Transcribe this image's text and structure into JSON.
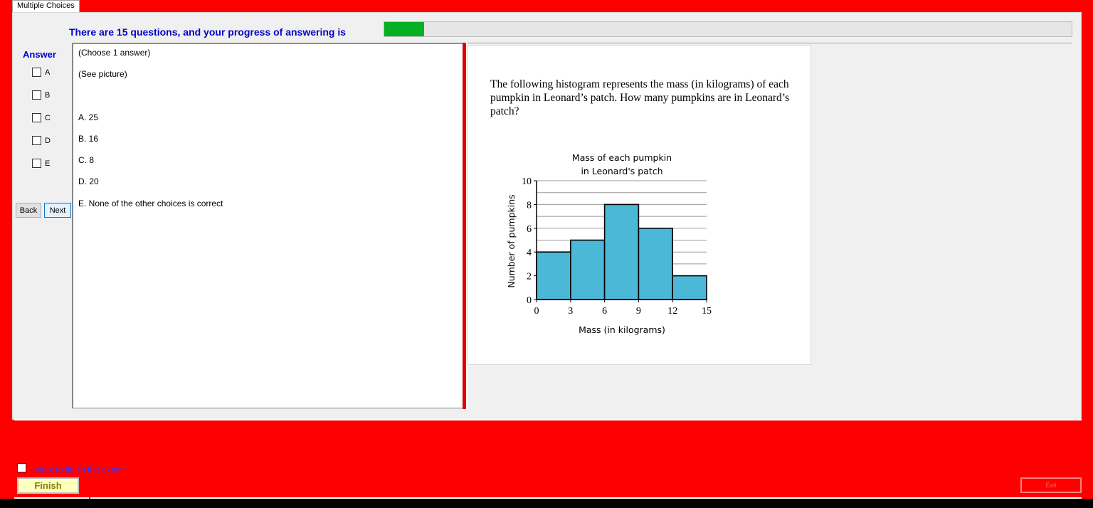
{
  "tab": {
    "label": "Multiple Choices"
  },
  "progress": {
    "label": "There are 15 questions, and your progress of answering is",
    "fraction": 0.058
  },
  "answer": {
    "heading": "Answer",
    "options": [
      "A",
      "B",
      "C",
      "D",
      "E"
    ]
  },
  "nav": {
    "back_label": "Back",
    "next_label": "Next"
  },
  "choices": {
    "instruction": "(Choose 1 answer)",
    "see_picture": "(See picture)",
    "items": [
      "A. 25",
      "B. 16",
      "C. 8",
      "D. 20",
      "E. None of the other choices is correct"
    ]
  },
  "question": {
    "text": "The following histogram represents the mass (in kilograms) of each pumpkin in Leonard’s patch. How many pumpkins are in Leonard’s patch?"
  },
  "chart_data": {
    "type": "bar",
    "title": "Mass of each pumpkin in Leonard's patch",
    "title_lines": [
      "Mass of each pumpkin",
      "in Leonard's patch"
    ],
    "xlabel": "Mass (in kilograms)",
    "ylabel": "Number of pumpkins",
    "bins": [
      [
        0,
        3
      ],
      [
        3,
        6
      ],
      [
        6,
        9
      ],
      [
        9,
        12
      ],
      [
        12,
        15
      ]
    ],
    "values": [
      4,
      5,
      8,
      6,
      2
    ],
    "xticks": [
      0,
      3,
      6,
      9,
      12,
      15
    ],
    "yticks": [
      0,
      2,
      4,
      6,
      8,
      10
    ],
    "xlim": [
      0,
      15
    ],
    "ylim": [
      0,
      10
    ],
    "grid": true,
    "bar_color": "#4bb8d8"
  },
  "finish": {
    "checkbox_label": "I want to finish the exam",
    "button_label": "Finish",
    "exit_label": "Exit"
  }
}
